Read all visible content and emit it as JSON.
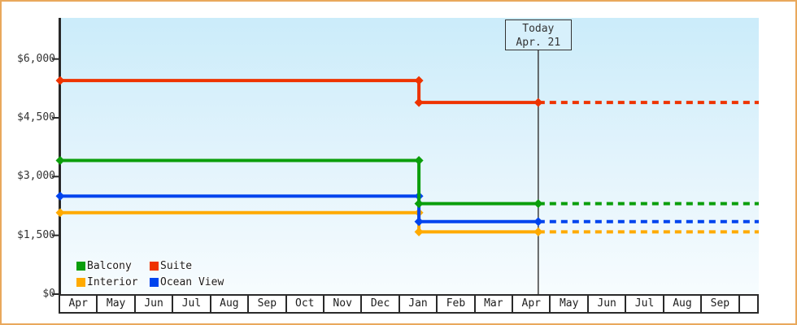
{
  "frame": {
    "border_color": "#e9a85c",
    "background": "#ffffff"
  },
  "chart_data": {
    "type": "line",
    "title": "",
    "xlabel": "",
    "ylabel": "",
    "x_months": [
      "Apr",
      "May",
      "Jun",
      "Jul",
      "Aug",
      "Sep",
      "Oct",
      "Nov",
      "Dec",
      "Jan",
      "Feb",
      "Mar",
      "Apr",
      "May",
      "Jun",
      "Jul",
      "Aug",
      "Sep"
    ],
    "y_ticks": [
      {
        "label": "$0",
        "value": 0
      },
      {
        "label": "$1,500",
        "value": 1500
      },
      {
        "label": "$3,000",
        "value": 3000
      },
      {
        "label": "$4,500",
        "value": 4500
      },
      {
        "label": "$6,000",
        "value": 6000
      }
    ],
    "ylim": [
      0,
      7050
    ],
    "grid": false,
    "plot_background_top": "#cbecfa",
    "plot_background_bottom": "#f7fcfe",
    "today_marker": {
      "line1": "Today",
      "line2": "Apr. 21",
      "month_index": 12,
      "month_fraction": 0.66,
      "line_color": "#3c3c3c"
    },
    "price_drop": {
      "month_index": 9,
      "month_fraction": 0.5
    },
    "series": [
      {
        "name": "Suite",
        "color": "#ee3300",
        "past_value": 5450,
        "current_value": 4890
      },
      {
        "name": "Interior",
        "color": "#ffaa00",
        "past_value": 2080,
        "current_value": 1590
      },
      {
        "name": "Ocean View",
        "color": "#0044ee",
        "past_value": 2500,
        "current_value": 1850
      },
      {
        "name": "Balcony",
        "color": "#0b9e0b",
        "past_value": 3410,
        "current_value": 2310
      }
    ],
    "line_style_before_today": "solid",
    "line_style_after_today": "dashed",
    "legend": [
      "Balcony",
      "Suite",
      "Interior",
      "Ocean View"
    ],
    "legend_position": "bottom-left"
  }
}
